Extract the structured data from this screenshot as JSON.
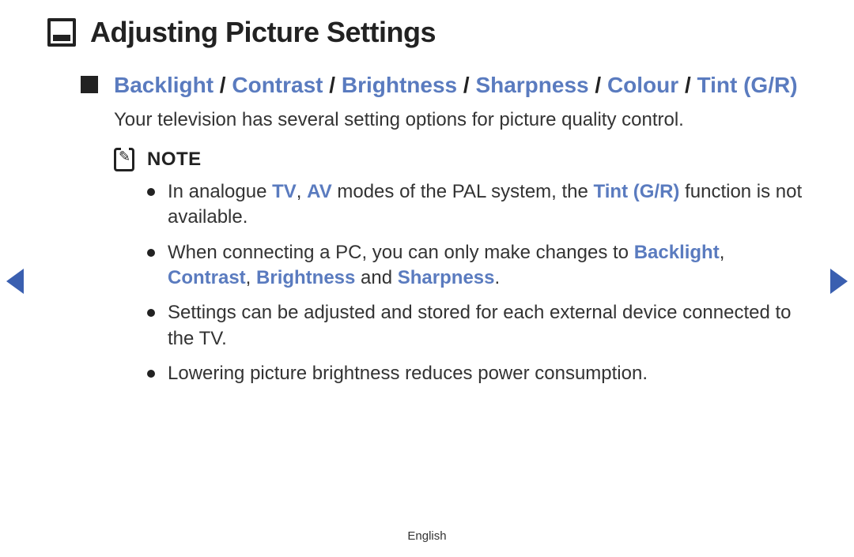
{
  "colors": {
    "text": "#222222",
    "highlight": "#5a7bbf",
    "arrow": "#3a5fb0",
    "background": "#ffffff"
  },
  "title": "Adjusting Picture Settings",
  "subheading": {
    "items": [
      "Backlight",
      "Contrast",
      "Brightness",
      "Sharpness",
      "Colour",
      "Tint (G/R)"
    ],
    "separator": " / "
  },
  "intro": "Your television has several setting options for picture quality control.",
  "note_label": "NOTE",
  "notes": [
    {
      "parts": [
        {
          "t": "In analogue "
        },
        {
          "t": "TV",
          "hl": true
        },
        {
          "t": ", "
        },
        {
          "t": "AV",
          "hl": true
        },
        {
          "t": " modes of the PAL system, the "
        },
        {
          "t": "Tint (G/R)",
          "hl": true
        },
        {
          "t": " function is not available."
        }
      ]
    },
    {
      "parts": [
        {
          "t": "When connecting a PC, you can only make changes to "
        },
        {
          "t": "Backlight",
          "hl": true
        },
        {
          "t": ", "
        },
        {
          "t": "Contrast",
          "hl": true
        },
        {
          "t": ", "
        },
        {
          "t": "Brightness",
          "hl": true
        },
        {
          "t": " and "
        },
        {
          "t": "Sharpness",
          "hl": true
        },
        {
          "t": "."
        }
      ]
    },
    {
      "parts": [
        {
          "t": "Settings can be adjusted and stored for each external device connected to the TV."
        }
      ]
    },
    {
      "parts": [
        {
          "t": "Lowering picture brightness reduces power consumption."
        }
      ]
    }
  ],
  "footer": "English"
}
